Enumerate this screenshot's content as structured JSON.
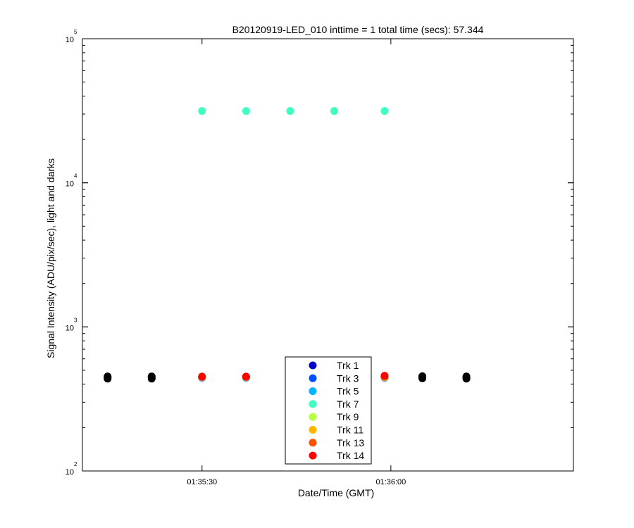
{
  "chart_data": {
    "type": "scatter",
    "title": "B20120919-LED_010 inttime = 1 total time (secs): 57.344",
    "xlabel": "Date/Time (GMT)",
    "ylabel": "Signal Intensity (ADU/pix/sec), light and darks",
    "y_scale": "log",
    "ylim": [
      100,
      100000
    ],
    "xlim": [
      "01:35:11",
      "01:36:29"
    ],
    "x_ticks": [
      "01:35:30",
      "01:36:00"
    ],
    "y_ticks": [
      {
        "value": 100,
        "base": "10",
        "exp": "2"
      },
      {
        "value": 1000,
        "base": "10",
        "exp": "3"
      },
      {
        "value": 10000,
        "base": "10",
        "exp": "4"
      },
      {
        "value": 100000,
        "base": "10",
        "exp": "5"
      }
    ],
    "grid": false,
    "legend_position": "bottom-center",
    "dark_color": "#000000",
    "series": [
      {
        "name": "Trk 1",
        "color": "#0000c8",
        "x": [
          "01:35:30",
          "01:35:37",
          "01:35:44",
          "01:35:51",
          "01:35:59"
        ],
        "y": [
          445,
          445,
          445,
          445,
          445
        ]
      },
      {
        "name": "Trk 3",
        "color": "#0050ff",
        "x": [
          "01:35:30",
          "01:35:37",
          "01:35:44",
          "01:35:51",
          "01:35:59"
        ],
        "y": [
          445,
          445,
          445,
          445,
          445
        ]
      },
      {
        "name": "Trk 5",
        "color": "#00b4ff",
        "x": [
          "01:35:30",
          "01:35:37",
          "01:35:44",
          "01:35:51",
          "01:35:59"
        ],
        "y": [
          448,
          448,
          448,
          448,
          448
        ]
      },
      {
        "name": "Trk 7",
        "color": "#40ffc0",
        "x": [
          "01:35:30",
          "01:35:37",
          "01:35:44",
          "01:35:51",
          "01:35:59"
        ],
        "y": [
          31500,
          31500,
          31500,
          31500,
          31500
        ]
      },
      {
        "name": "Trk 9",
        "color": "#b4ff40",
        "x": [
          "01:35:30",
          "01:35:37",
          "01:35:44",
          "01:35:51",
          "01:35:59"
        ],
        "y": [
          448,
          448,
          448,
          448,
          448
        ]
      },
      {
        "name": "Trk 11",
        "color": "#ffb400",
        "x": [
          "01:35:30",
          "01:35:37",
          "01:35:44",
          "01:35:51",
          "01:35:59"
        ],
        "y": [
          449,
          449,
          449,
          449,
          449
        ]
      },
      {
        "name": "Trk 13",
        "color": "#ff5000",
        "x": [
          "01:35:30",
          "01:35:37",
          "01:35:44",
          "01:35:51",
          "01:35:59"
        ],
        "y": [
          450,
          450,
          450,
          450,
          452
        ]
      },
      {
        "name": "Trk 14",
        "color": "#ff0000",
        "x": [
          "01:35:30",
          "01:35:37",
          "01:35:44",
          "01:35:51",
          "01:35:59"
        ],
        "y": [
          452,
          452,
          452,
          452,
          458
        ]
      }
    ],
    "darks": {
      "x": [
        "01:35:15",
        "01:35:22",
        "01:36:05",
        "01:36:12"
      ],
      "y": [
        445,
        445,
        447,
        445
      ]
    }
  }
}
